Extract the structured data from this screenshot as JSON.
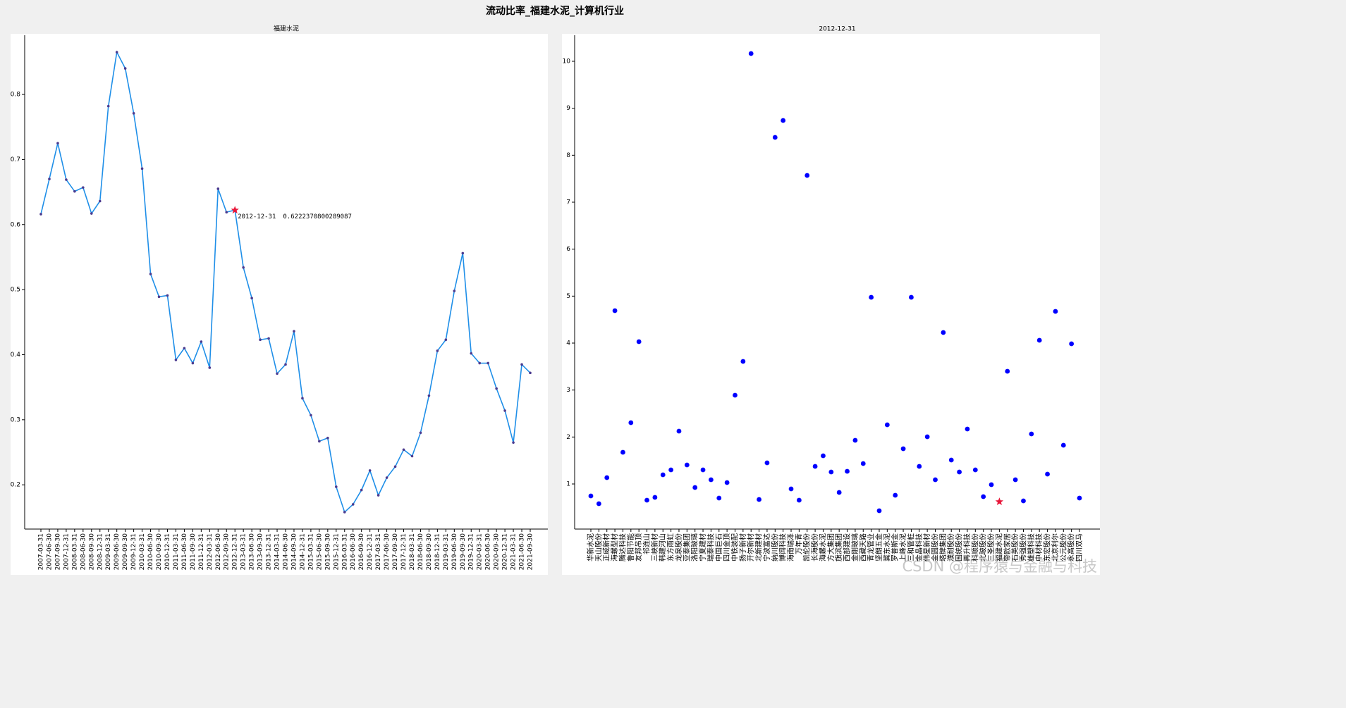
{
  "title": "流动比率_福建水泥_计算机行业",
  "watermark": "CSDN @程序猿与金融与科技",
  "highlight_color": "#e8173a",
  "chart_data": [
    {
      "type": "line",
      "title": "福建水泥",
      "color": "#1f8fe8",
      "marker_color": "#4b3b8f",
      "categories": [
        "2007-03-31",
        "2007-06-30",
        "2007-09-30",
        "2007-12-31",
        "2008-03-31",
        "2008-06-30",
        "2008-09-30",
        "2008-12-31",
        "2009-03-31",
        "2009-06-30",
        "2009-09-30",
        "2009-12-31",
        "2010-03-31",
        "2010-06-30",
        "2010-09-30",
        "2010-12-31",
        "2011-03-31",
        "2011-06-30",
        "2011-09-30",
        "2011-12-31",
        "2012-03-31",
        "2012-06-30",
        "2012-09-30",
        "2012-12-31",
        "2013-03-31",
        "2013-06-30",
        "2013-09-30",
        "2013-12-31",
        "2014-03-31",
        "2014-06-30",
        "2014-09-30",
        "2014-12-31",
        "2015-03-31",
        "2015-06-30",
        "2015-09-30",
        "2015-12-31",
        "2016-03-31",
        "2016-06-30",
        "2016-09-30",
        "2016-12-31",
        "2017-03-31",
        "2017-06-30",
        "2017-09-30",
        "2017-12-31",
        "2018-03-31",
        "2018-06-30",
        "2018-09-30",
        "2018-12-31",
        "2019-03-31",
        "2019-06-30",
        "2019-09-30",
        "2019-12-31",
        "2020-03-31",
        "2020-06-30",
        "2020-09-30",
        "2020-12-31",
        "2021-03-31",
        "2021-06-30",
        "2021-09-30"
      ],
      "values": [
        0.616,
        0.67,
        0.725,
        0.669,
        0.651,
        0.657,
        0.617,
        0.636,
        0.782,
        0.865,
        0.84,
        0.771,
        0.686,
        0.524,
        0.489,
        0.491,
        0.392,
        0.41,
        0.387,
        0.42,
        0.38,
        0.655,
        0.619,
        0.6222370800289087,
        0.534,
        0.487,
        0.423,
        0.425,
        0.371,
        0.385,
        0.436,
        0.333,
        0.307,
        0.267,
        0.272,
        0.197,
        0.158,
        0.17,
        0.192,
        0.222,
        0.184,
        0.211,
        0.228,
        0.254,
        0.244,
        0.28,
        0.337,
        0.406,
        0.423,
        0.498,
        0.556,
        0.402,
        0.387,
        0.387,
        0.348,
        0.314,
        0.265,
        0.385,
        0.372
      ],
      "ylim": [
        0.132,
        0.891
      ],
      "yticks": [
        0.2,
        0.3,
        0.4,
        0.5,
        0.6,
        0.7,
        0.8
      ]
    },
    {
      "type": "scatter",
      "title": "2012-12-31",
      "color": "#0000ff",
      "categories": [
        "华新水泥",
        "天山股份",
        "正威新材",
        "海螺型材",
        "腾达科技",
        "鲁阳节能",
        "友邦吊顶",
        "祁连山",
        "三峡新材",
        "韩建河山",
        "东方雨虹",
        "龙泉股份",
        "亚泰集团",
        "洛阳玻璃",
        "宁夏建材",
        "瑞泰科技",
        "中国巨石",
        "四川金顶",
        "中铁装配",
        "扬子新材",
        "开尔新材",
        "北新建材",
        "宁波富达",
        "纳川股份",
        "博闻科技",
        "海南瑞泽",
        "万年青",
        "凯伦股份",
        "长海股份",
        "海螺水泥",
        "方大集团",
        "旗滨集团",
        "西部建设",
        "金刚玻璃",
        "西藏天路",
        "青龙管业",
        "坚朗五金",
        "冀东水泥",
        "罗普斯金",
        "上峰水泥",
        "三和管桩",
        "金晶科技",
        "伟星新材",
        "金圆股份",
        "塔牌集团",
        "濮耐股份",
        "国统股份",
        "再升科技",
        "科顺股份",
        "北玻股份",
        "三圣股份",
        "福建水泥",
        "帝欧家居",
        "石英股份",
        "秀强股份",
        "雄塑科技",
        "中材科技",
        "东宏股份",
        "北京利尔",
        "公元股份",
        "永高股份",
        "四川双马"
      ],
      "values": [
        0.745,
        0.58,
        1.135,
        4.69,
        1.675,
        2.305,
        4.03,
        0.655,
        0.715,
        1.195,
        1.3,
        2.125,
        1.405,
        0.925,
        1.3,
        1.09,
        0.7,
        1.03,
        2.89,
        3.61,
        10.165,
        0.67,
        1.45,
        8.38,
        8.74,
        0.895,
        0.655,
        7.57,
        1.375,
        1.6,
        1.255,
        0.82,
        1.27,
        1.93,
        1.435,
        4.975,
        0.43,
        2.26,
        0.76,
        1.75,
        4.975,
        1.375,
        2.005,
        1.09,
        4.225,
        1.51,
        1.255,
        2.17,
        1.3,
        0.73,
        0.985,
        0.6222370800289087,
        3.4,
        1.09,
        0.64,
        2.065,
        4.06,
        1.21,
        4.675,
        1.825,
        3.985,
        0.7
      ],
      "ylim": [
        0.04,
        10.555
      ],
      "yticks": [
        1,
        2,
        3,
        4,
        5,
        6,
        7,
        8,
        9,
        10
      ]
    }
  ]
}
